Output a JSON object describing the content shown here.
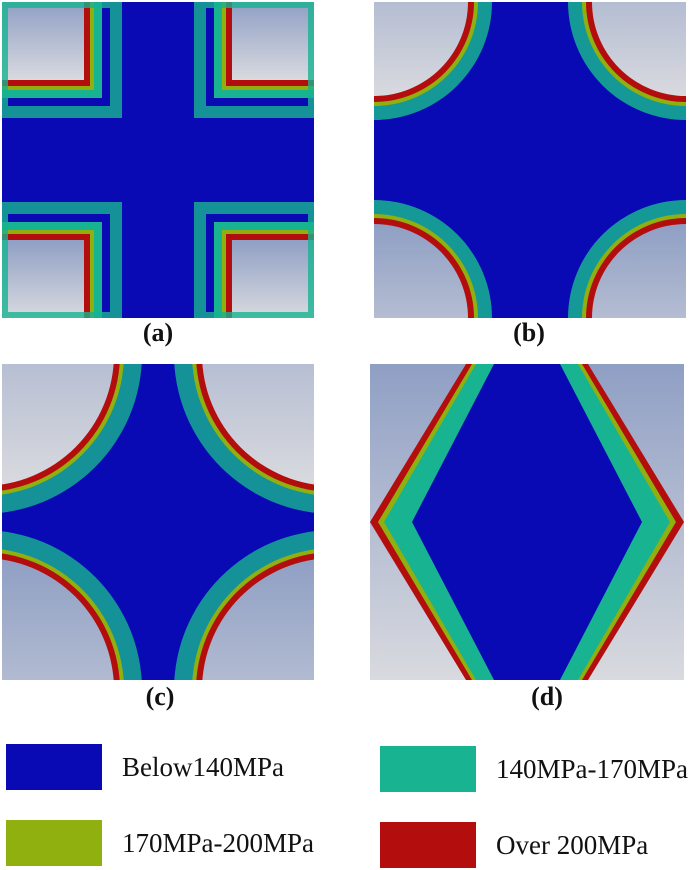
{
  "figure": {
    "panels": [
      {
        "id": "a",
        "caption": "(a)",
        "shape": "square-cross"
      },
      {
        "id": "b",
        "caption": "(b)",
        "shape": "concave-arc"
      },
      {
        "id": "c",
        "caption": "(c)",
        "shape": "large-concave-arc"
      },
      {
        "id": "d",
        "caption": "(d)",
        "shape": "diamond"
      }
    ]
  },
  "legend": {
    "items": [
      {
        "label": "Below140MPa",
        "color": "#0a0ab4"
      },
      {
        "label": "140MPa-170MPa",
        "color": "#18b391"
      },
      {
        "label": "170MPa-200MPa",
        "color": "#8fb00f"
      },
      {
        "label": "Over 200MPa",
        "color": "#b30d0d"
      }
    ]
  },
  "colors": {
    "background_gray_top": "#8f9fc4",
    "background_gray_bottom": "#d9dadf",
    "blue": "#0a0ab4",
    "teal": "#18b391",
    "olive": "#8fb00f",
    "red": "#b30d0d"
  }
}
